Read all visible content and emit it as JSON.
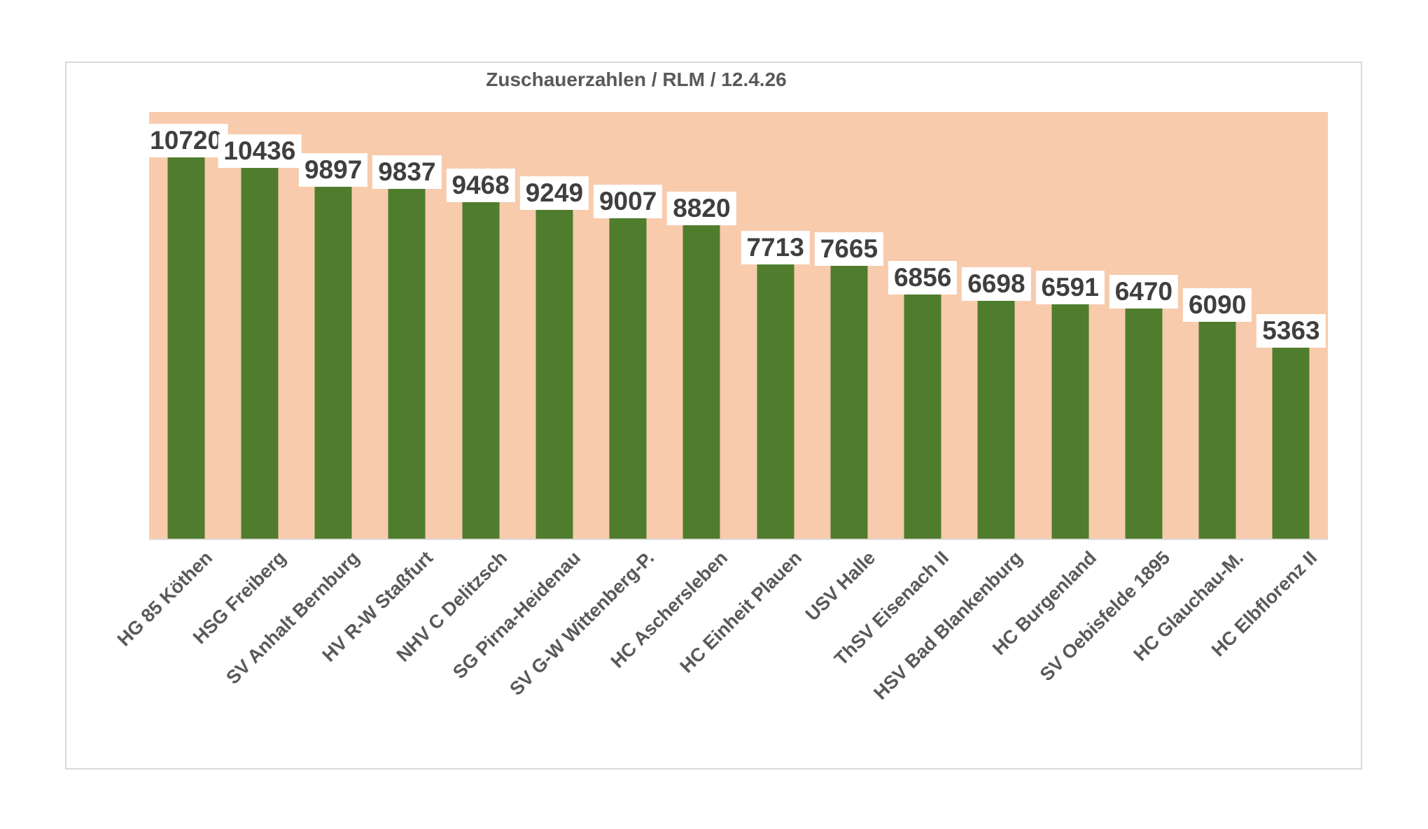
{
  "chart_data": {
    "type": "bar",
    "title": "Zuschauerzahlen / RLM / 12.4.26",
    "categories": [
      "HG 85 Köthen",
      "HSG Freiberg",
      "SV Anhalt Bernburg",
      "HV R-W Staßfurt",
      "NHV C Delitzsch",
      "SG Pirna-Heidenau",
      "SV G-W Wittenberg-P.",
      "HC Aschersleben",
      "HC Einheit Plauen",
      "USV Halle",
      "ThSV Eisenach II",
      "HSV Bad Blankenburg",
      "HC Burgenland",
      "SV Oebisfelde 1895",
      "HC Glauchau-M.",
      "HC Elbflorenz II"
    ],
    "values": [
      10720,
      10436,
      9897,
      9837,
      9468,
      9249,
      9007,
      8820,
      7713,
      7665,
      6856,
      6698,
      6591,
      6470,
      6090,
      5363
    ],
    "xlabel": "",
    "ylabel": "",
    "ylim": [
      0,
      12000
    ],
    "grid": false,
    "legend": false,
    "x_label_rotation": -45,
    "data_labels": true,
    "colors": {
      "bar": "#4f7d2d",
      "plot_background": "#f8cbad",
      "title_text": "#595959",
      "axis_label_text": "#595959",
      "value_text": "#3f3f3f",
      "value_label_background": "#ffffff",
      "chart_border": "#d9d9d9",
      "page_background": "#ffffff"
    }
  }
}
